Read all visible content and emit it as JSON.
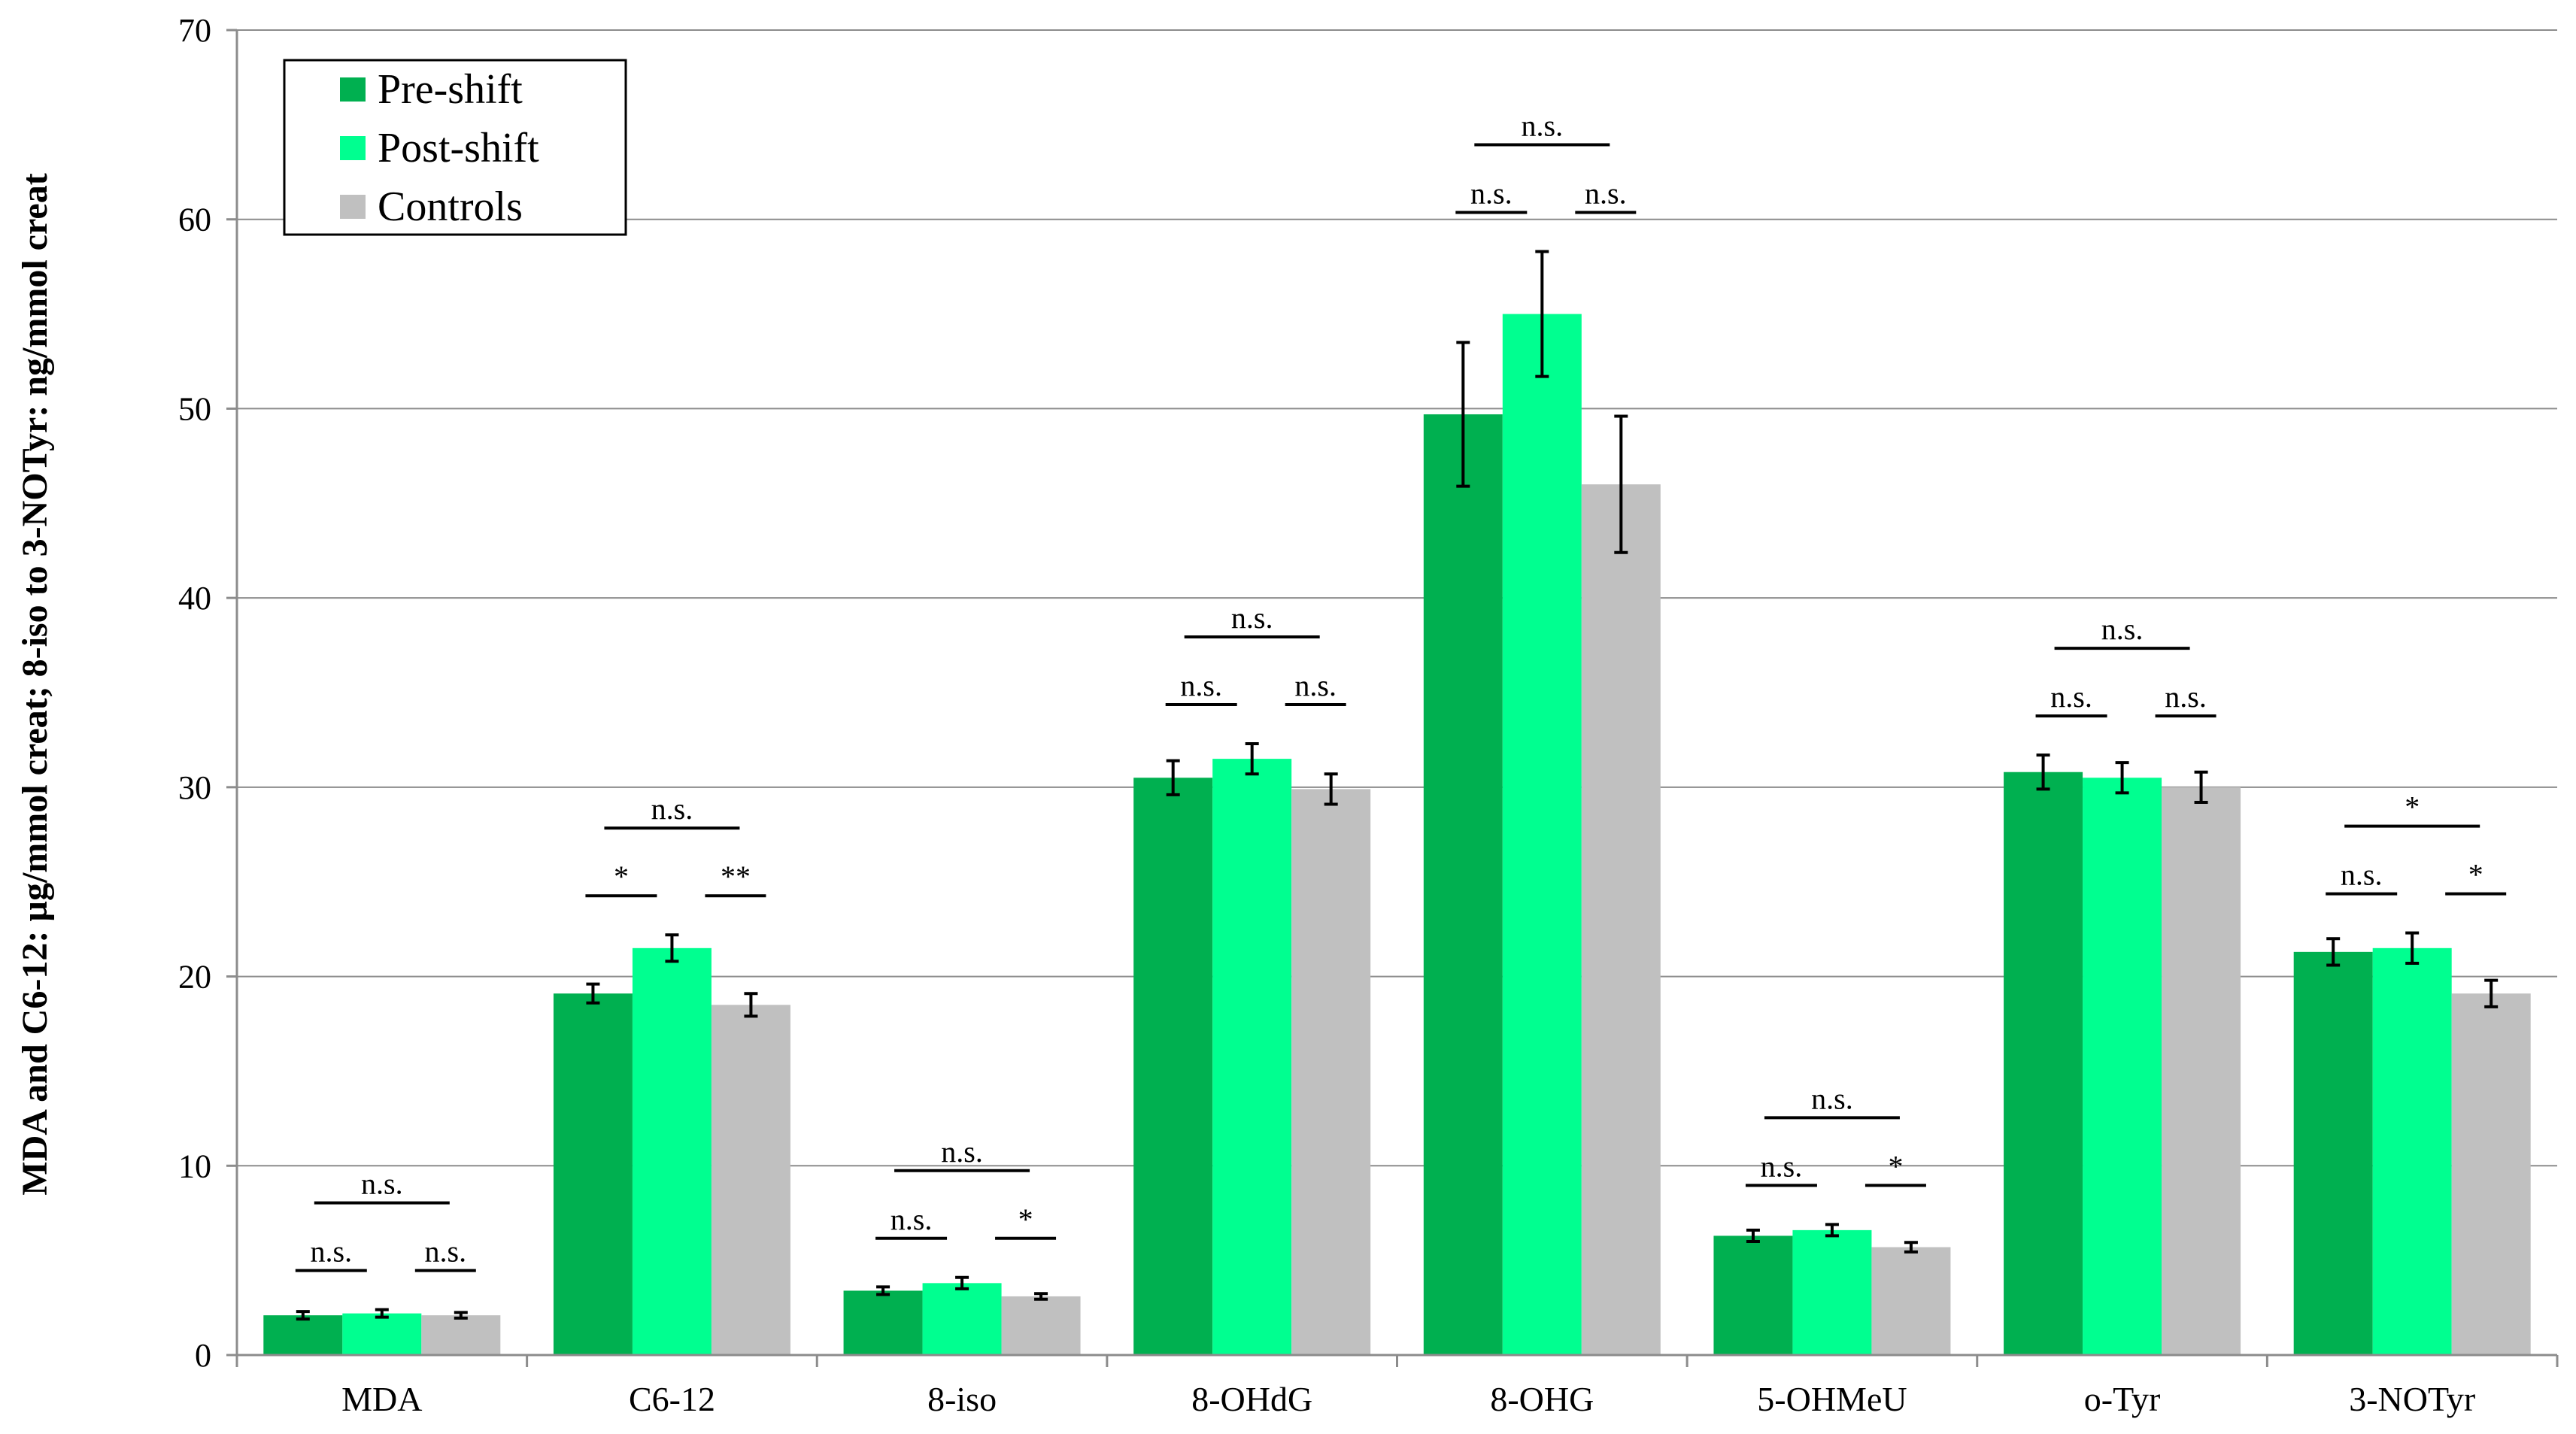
{
  "chart_data": {
    "type": "bar",
    "title": "",
    "xlabel": "",
    "ylabel": "MDA and C6-12: µg/mmol creat;  8-iso to 3-NOTyr:  ng/mmol creat",
    "ylim": [
      0,
      70
    ],
    "yticks": [
      0,
      10,
      20,
      30,
      40,
      50,
      60,
      70
    ],
    "grid": true,
    "legend_position": "top-left",
    "categories": [
      "MDA",
      "C6-12",
      "8-iso",
      "8-OHdG",
      "8-OHG",
      "5-OHMeU",
      "o-Tyr",
      "3-NOTyr"
    ],
    "series": [
      {
        "name": "Pre-shift",
        "color": "#00b050",
        "values": [
          2.1,
          19.1,
          3.4,
          30.5,
          49.7,
          6.3,
          30.8,
          21.3
        ],
        "errors": [
          0.2,
          0.5,
          0.2,
          0.9,
          3.8,
          0.3,
          0.9,
          0.7
        ]
      },
      {
        "name": "Post-shift",
        "color": "#00ff90",
        "values": [
          2.2,
          21.5,
          3.8,
          31.5,
          55.0,
          6.6,
          30.5,
          21.5
        ],
        "errors": [
          0.2,
          0.7,
          0.3,
          0.8,
          3.3,
          0.3,
          0.8,
          0.8
        ]
      },
      {
        "name": "Controls",
        "color": "#c0c0c0",
        "values": [
          2.1,
          18.5,
          3.1,
          29.9,
          46.0,
          5.7,
          30.0,
          19.1
        ],
        "errors": [
          0.15,
          0.6,
          0.15,
          0.8,
          3.6,
          0.25,
          0.8,
          0.7
        ]
      }
    ],
    "significance": [
      {
        "category": "MDA",
        "pre_vs_post": "n.s.",
        "post_vs_controls": "n.s.",
        "pre_vs_controls": "n.s."
      },
      {
        "category": "C6-12",
        "pre_vs_post": "*",
        "post_vs_controls": "**",
        "pre_vs_controls": "n.s."
      },
      {
        "category": "8-iso",
        "pre_vs_post": "n.s.",
        "post_vs_controls": "*",
        "pre_vs_controls": "n.s."
      },
      {
        "category": "8-OHdG",
        "pre_vs_post": "n.s.",
        "post_vs_controls": "n.s.",
        "pre_vs_controls": "n.s."
      },
      {
        "category": "8-OHG",
        "pre_vs_post": "n.s.",
        "post_vs_controls": "n.s.",
        "pre_vs_controls": "n.s."
      },
      {
        "category": "5-OHMeU",
        "pre_vs_post": "n.s.",
        "post_vs_controls": "*",
        "pre_vs_controls": "n.s."
      },
      {
        "category": "o-Tyr",
        "pre_vs_post": "n.s.",
        "post_vs_controls": "n.s.",
        "pre_vs_controls": "n.s."
      },
      {
        "category": "3-NOTyr",
        "pre_vs_post": "n.s.",
        "post_vs_controls": "*",
        "pre_vs_controls": "*"
      }
    ]
  }
}
